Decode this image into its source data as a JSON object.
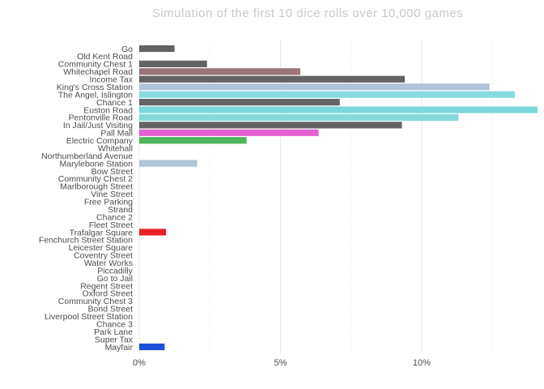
{
  "chart_data": {
    "type": "bar",
    "orientation": "horizontal",
    "title": "Simulation of the first 10 dice rolls over 10,000 games",
    "xlabel": "",
    "ylabel": "",
    "xlim": [
      0,
      14.1
    ],
    "x_ticks": [
      {
        "value": 0,
        "label": "0%"
      },
      {
        "value": 5,
        "label": "5%"
      },
      {
        "value": 10,
        "label": "10%"
      }
    ],
    "grid": "vertical",
    "categories": [
      "Go",
      "Old Kent Road",
      "Community Chest 1",
      "Whitechapel Road",
      "Income Tax",
      "King's Cross Station",
      "The Angel, Islington",
      "Chance 1",
      "Euston Road",
      "Pentonville Road",
      "In Jail/Just Visiting",
      "Pall Mall",
      "Electric Company",
      "Whitehall",
      "Northumberland Avenue",
      "Marylebone Station",
      "Bow Street",
      "Community Chest 2",
      "Marlborough Street",
      "Vine Street",
      "Free Parking",
      "Strand",
      "Chance 2",
      "Fleet Street",
      "Trafalgar Square",
      "Fenchurch Street Station",
      "Leicester Square",
      "Coventry Street",
      "Water Works",
      "Piccadilly",
      "Go to Jail",
      "Regent Street",
      "Oxford Street",
      "Community Chest 3",
      "Bond Street",
      "Liverpool Street Station",
      "Chance 3",
      "Park Lane",
      "Super Tax",
      "Mayfair"
    ],
    "values": [
      1.25,
      0,
      2.4,
      5.7,
      9.4,
      12.4,
      13.3,
      7.1,
      14.1,
      11.3,
      9.3,
      6.35,
      3.8,
      0,
      0,
      2.05,
      0,
      0,
      0,
      0,
      0,
      0,
      0,
      0,
      0.95,
      0,
      0,
      0,
      0,
      0,
      0,
      0,
      0,
      0,
      0,
      0,
      0,
      0,
      0,
      0.9
    ],
    "colors": [
      "#636363",
      "#955436",
      "#636363",
      "#9a7575",
      "#636363",
      "#b0c4d8",
      "#87dbdf",
      "#636363",
      "#7ad8d8",
      "#85d8d8",
      "#636363",
      "#e35fd2",
      "#4fb55a",
      "#e35fd2",
      "#e35fd2",
      "#b0c4d8",
      "#f39c33",
      "#636363",
      "#f39c33",
      "#f39c33",
      "#636363",
      "#e8202a",
      "#636363",
      "#e8202a",
      "#e8202a",
      "#b0c4d8",
      "#f5e000",
      "#f5e000",
      "#4fb55a",
      "#f5e000",
      "#636363",
      "#1fa64a",
      "#1fa64a",
      "#636363",
      "#1fa64a",
      "#b0c4d8",
      "#636363",
      "#1e4fd6",
      "#636363",
      "#1e4fd6"
    ]
  }
}
